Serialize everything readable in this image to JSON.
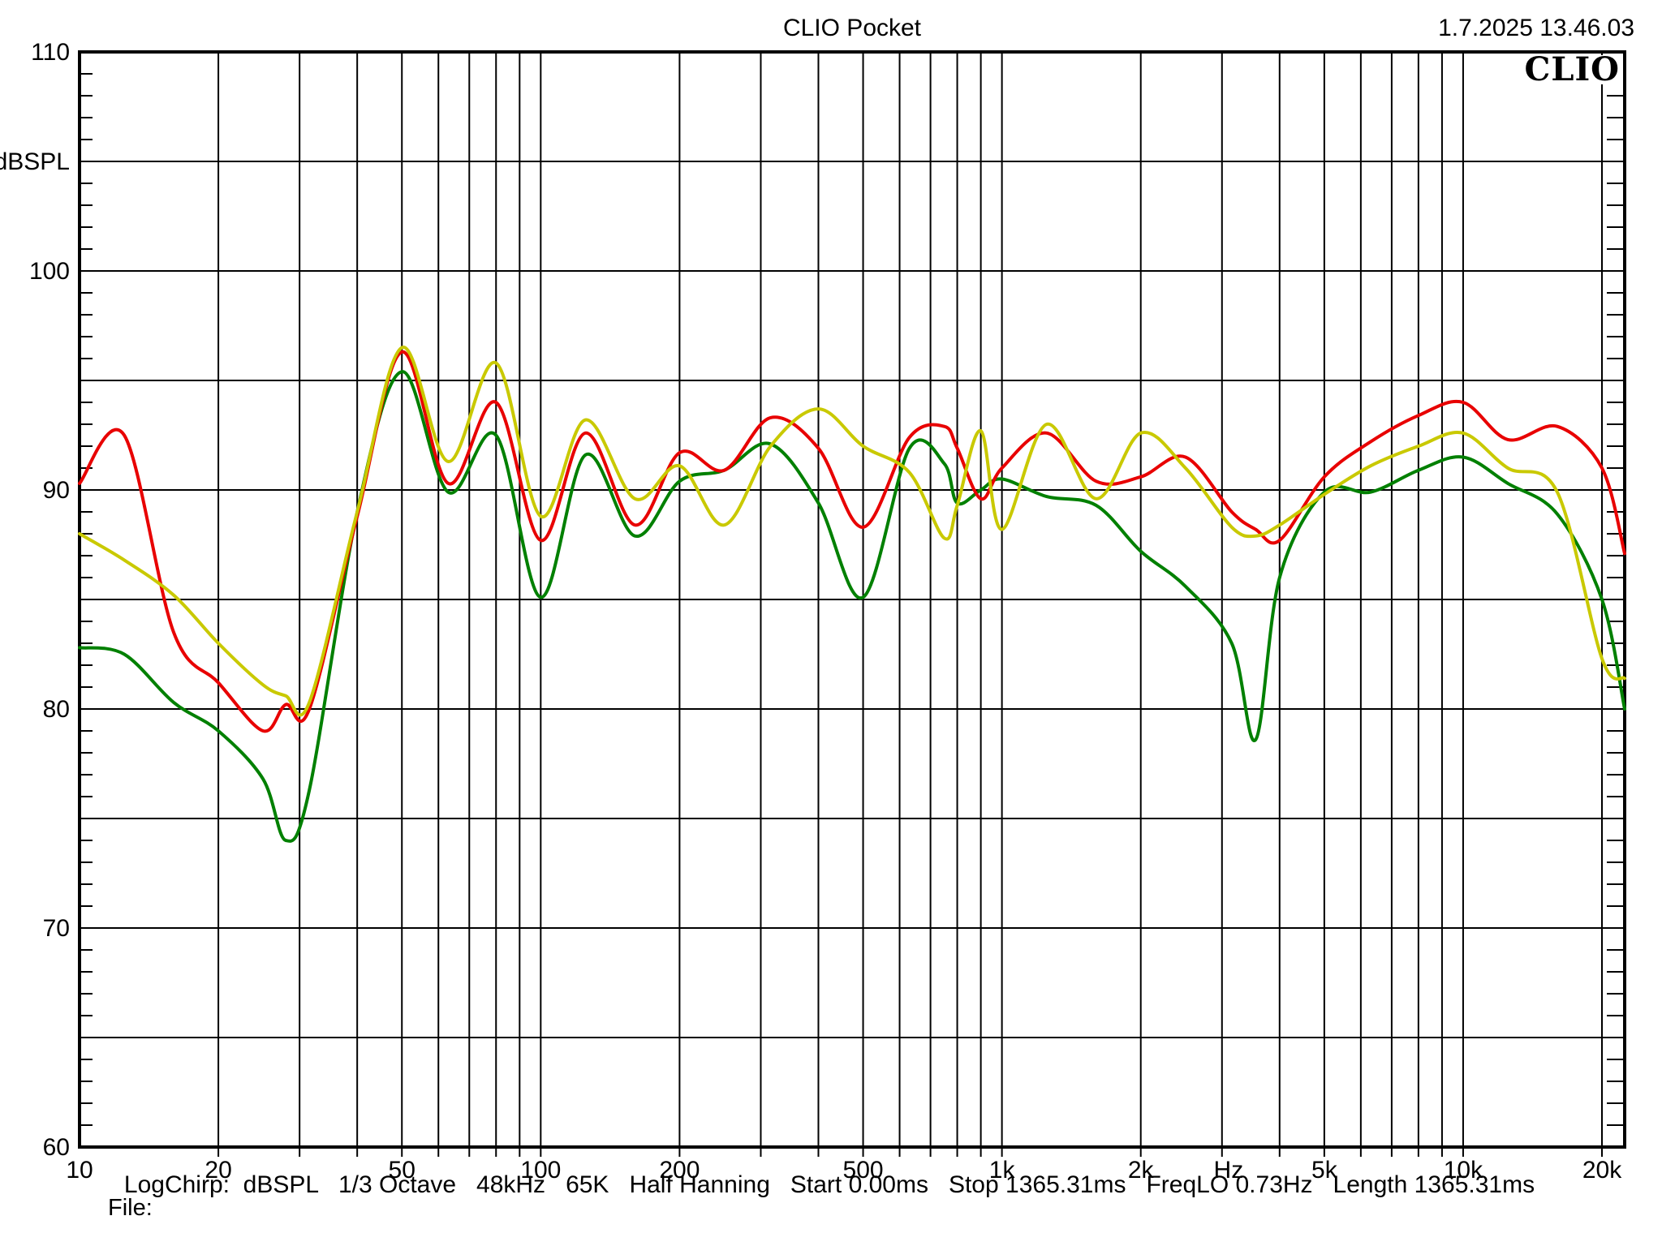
{
  "header": {
    "title": "CLIO Pocket",
    "datetime": "1.7.2025 13.46.03"
  },
  "logo": {
    "text": "CLIO"
  },
  "footer": {
    "status_line": "LogChirp:  dBSPL   1/3 Octave   48kHz   65K   Half Hanning   Start 0.00ms   Stop 1365.31ms   FreqLO 0.73Hz   Length 1365.31ms",
    "file_label": "File:"
  },
  "chart_data": {
    "type": "line",
    "title": "CLIO Pocket",
    "xlabel": "Hz",
    "ylabel": "dBSPL",
    "xscale": "log",
    "xlim": [
      10,
      22400
    ],
    "ylim": [
      60,
      110
    ],
    "grid": {
      "y_major_db": 5,
      "y_minor_tick_db": 1,
      "x_minor_per_decade": "1-2-3-4-5-6-7-8-9",
      "legend": "none"
    },
    "y_tick_labels": [
      110,
      100,
      90,
      80,
      70,
      60
    ],
    "y_unit_label_db": 105,
    "x_ticks": [
      {
        "f": 10,
        "label": "10"
      },
      {
        "f": 20,
        "label": "20"
      },
      {
        "f": 50,
        "label": "50"
      },
      {
        "f": 100,
        "label": "100"
      },
      {
        "f": 200,
        "label": "200"
      },
      {
        "f": 500,
        "label": "500"
      },
      {
        "f": 1000,
        "label": "1k"
      },
      {
        "f": 2000,
        "label": "2k"
      },
      {
        "f": 5000,
        "label": "5k"
      },
      {
        "f": 10000,
        "label": "10k"
      },
      {
        "f": 20000,
        "label": "20k"
      }
    ],
    "x_unit_label_f": 3100,
    "x": [
      10,
      12.5,
      16,
      20,
      25,
      28,
      31.5,
      40,
      50,
      63,
      80,
      100,
      125,
      160,
      200,
      250,
      315,
      400,
      500,
      630,
      750,
      800,
      900,
      1000,
      1250,
      1600,
      2000,
      2500,
      3150,
      3550,
      4000,
      5000,
      6300,
      8000,
      10000,
      12500,
      16000,
      20000,
      22400
    ],
    "series": [
      {
        "name": "curve-green",
        "color": "#008000",
        "values": [
          82.8,
          82.5,
          80.3,
          79.0,
          76.8,
          74.0,
          76.3,
          89.0,
          95.4,
          89.9,
          92.5,
          85.1,
          91.6,
          87.9,
          90.4,
          90.9,
          92.1,
          89.4,
          85.1,
          91.9,
          91.2,
          89.4,
          90.0,
          90.5,
          89.7,
          89.3,
          87.2,
          85.6,
          83.0,
          78.6,
          86.0,
          89.9,
          89.9,
          90.9,
          91.5,
          90.3,
          88.9,
          85.0,
          80.0
        ]
      },
      {
        "name": "curve-red",
        "color": "#e80000",
        "values": [
          90.3,
          92.5,
          83.5,
          81.2,
          79.0,
          80.2,
          80.0,
          88.8,
          96.3,
          90.3,
          94.0,
          87.7,
          92.6,
          88.4,
          91.7,
          90.9,
          93.3,
          91.9,
          88.3,
          92.4,
          92.9,
          91.9,
          89.6,
          91.0,
          92.6,
          90.4,
          90.6,
          91.5,
          89.0,
          88.2,
          87.7,
          90.6,
          92.2,
          93.4,
          94.0,
          92.3,
          92.9,
          91.0,
          87.1
        ]
      },
      {
        "name": "curve-yellow",
        "color": "#c9c900",
        "values": [
          88.0,
          86.8,
          85.2,
          83.0,
          81.1,
          80.6,
          80.3,
          89.0,
          96.5,
          91.3,
          95.8,
          88.8,
          93.2,
          89.6,
          91.1,
          88.4,
          92.0,
          93.7,
          92.0,
          90.8,
          87.8,
          89.3,
          92.7,
          88.2,
          93.0,
          89.6,
          92.6,
          91.0,
          88.3,
          87.9,
          88.4,
          89.8,
          91.1,
          92.0,
          92.6,
          91.0,
          89.9,
          82.3,
          81.4
        ]
      }
    ]
  }
}
